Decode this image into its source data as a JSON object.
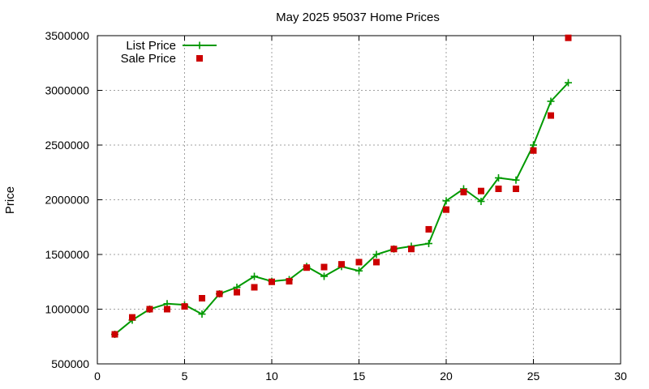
{
  "chart_data": {
    "type": "line",
    "title": "May 2025 95037 Home Prices",
    "xlabel": "",
    "ylabel": "Price",
    "xlim": [
      0,
      30
    ],
    "ylim": [
      500000,
      3500000
    ],
    "xticks": [
      0,
      5,
      10,
      15,
      20,
      25,
      30
    ],
    "yticks": [
      500000,
      1000000,
      1500000,
      2000000,
      2500000,
      3000000,
      3500000
    ],
    "grid": true,
    "legend_position": "top-left",
    "series": [
      {
        "name": "List Price",
        "style": "line-with-plus-markers",
        "color": "#009900",
        "x": [
          1,
          2,
          3,
          4,
          5,
          6,
          7,
          8,
          9,
          10,
          11,
          12,
          13,
          14,
          15,
          16,
          17,
          18,
          19,
          20,
          21,
          22,
          23,
          24,
          25,
          26,
          27
        ],
        "values": [
          770000,
          900000,
          1000000,
          1050000,
          1040000,
          955000,
          1140000,
          1200000,
          1300000,
          1255000,
          1270000,
          1390000,
          1300000,
          1390000,
          1350000,
          1500000,
          1550000,
          1575000,
          1600000,
          1990000,
          2100000,
          1985000,
          2200000,
          2180000,
          2500000,
          2900000,
          3070000
        ]
      },
      {
        "name": "Sale Price",
        "style": "square-markers",
        "color": "#cc0000",
        "x": [
          1,
          2,
          3,
          4,
          5,
          6,
          7,
          8,
          9,
          10,
          11,
          12,
          13,
          14,
          15,
          16,
          17,
          18,
          19,
          20,
          21,
          22,
          23,
          24,
          25,
          26,
          27
        ],
        "values": [
          770000,
          925000,
          1000000,
          1000000,
          1025000,
          1100000,
          1140000,
          1155000,
          1200000,
          1250000,
          1255000,
          1380000,
          1385000,
          1410000,
          1430000,
          1430000,
          1550000,
          1550000,
          1730000,
          1910000,
          2070000,
          2080000,
          2100000,
          2100000,
          2450000,
          2770000,
          3480000
        ]
      }
    ]
  }
}
